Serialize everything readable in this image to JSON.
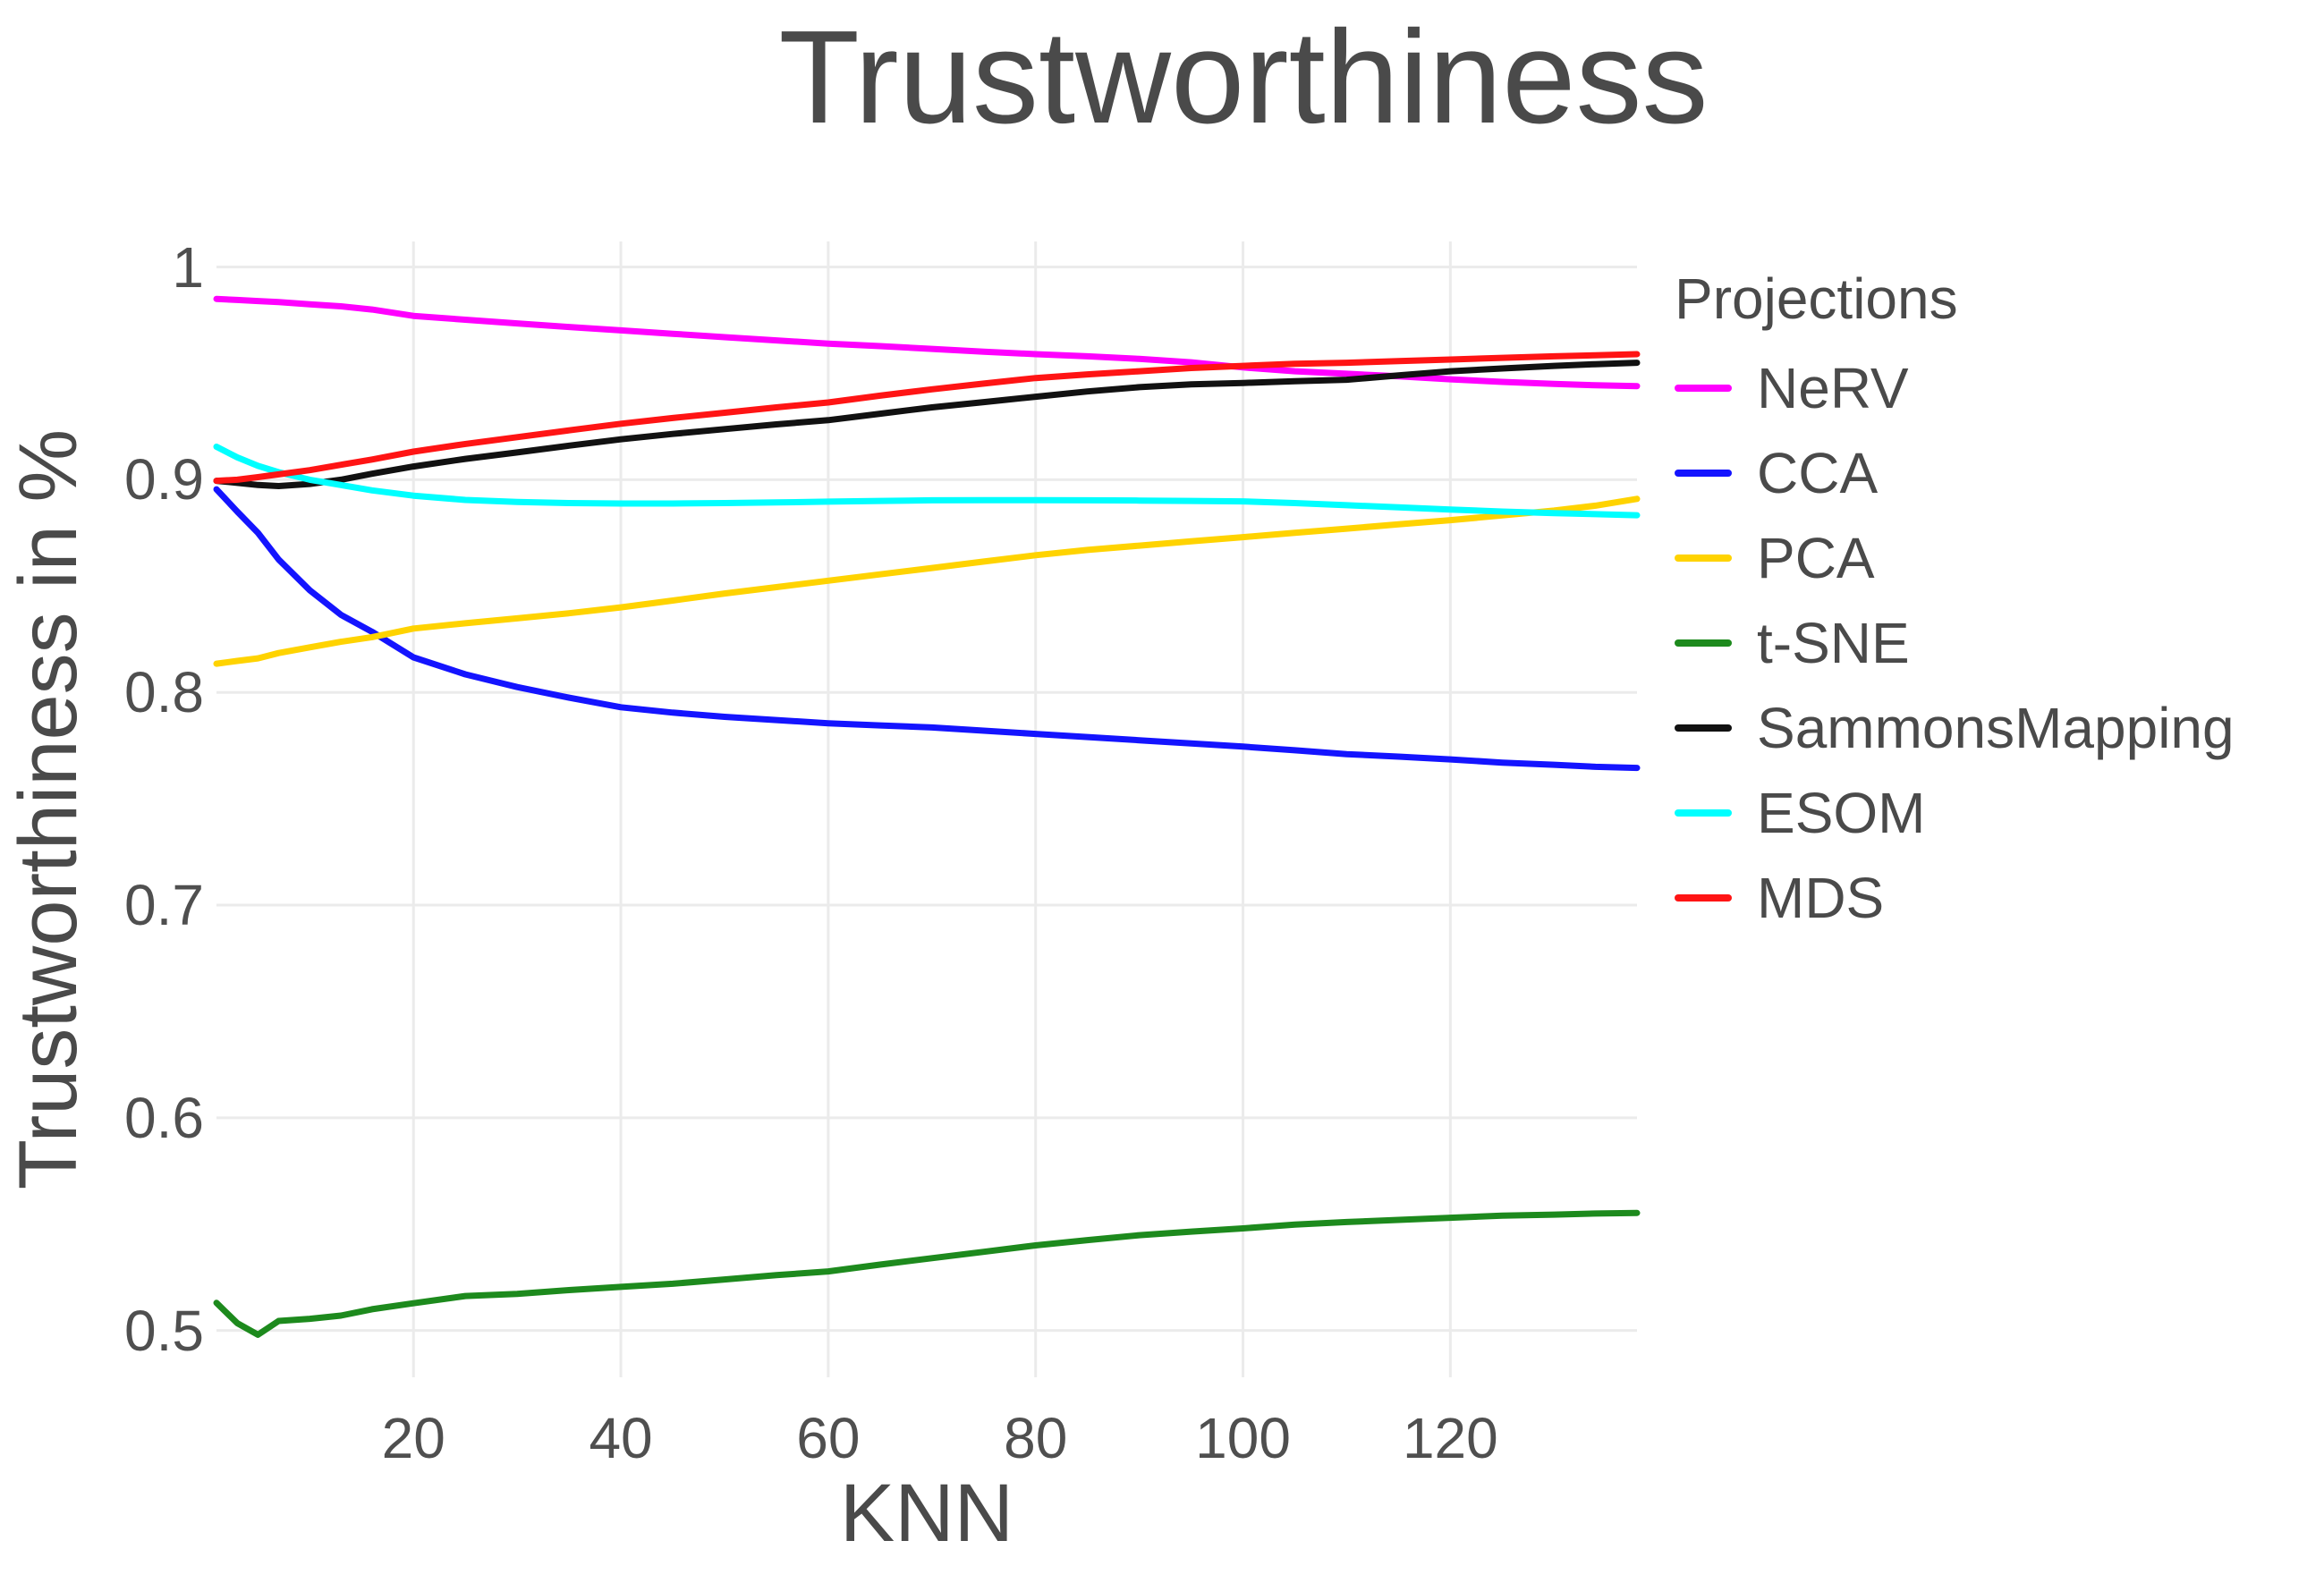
{
  "chart_data": {
    "type": "line",
    "title": "Trustworthiness",
    "xlabel": "KNN",
    "ylabel": "Trustworthiness in %",
    "legend_title": "Projections",
    "legend_position": "right",
    "grid": true,
    "xlim": [
      1,
      138
    ],
    "ylim": [
      0.478,
      1.012
    ],
    "x_ticks": [
      20,
      40,
      60,
      80,
      100,
      120
    ],
    "x_tick_labels": [
      "20",
      "40",
      "60",
      "80",
      "100",
      "120"
    ],
    "y_ticks": [
      0.5,
      0.6,
      0.7,
      0.8,
      0.9,
      1
    ],
    "y_tick_labels": [
      "0.5",
      "0.6",
      "0.7",
      "0.8",
      "0.9",
      "1"
    ],
    "x": [
      1,
      3,
      5,
      7,
      10,
      13,
      16,
      20,
      25,
      30,
      35,
      40,
      45,
      50,
      55,
      60,
      65,
      70,
      75,
      80,
      85,
      90,
      95,
      100,
      105,
      110,
      115,
      120,
      125,
      130,
      134,
      138
    ],
    "series": [
      {
        "name": "NeRV",
        "color": "#ff00ff",
        "values": [
          0.985,
          0.9845,
          0.984,
          0.9835,
          0.9825,
          0.9815,
          0.98,
          0.977,
          0.9752,
          0.9735,
          0.9718,
          0.9702,
          0.9686,
          0.967,
          0.9655,
          0.964,
          0.9628,
          0.9615,
          0.9602,
          0.959,
          0.958,
          0.9568,
          0.9552,
          0.9528,
          0.951,
          0.9498,
          0.9486,
          0.9472,
          0.946,
          0.945,
          0.9444,
          0.944
        ]
      },
      {
        "name": "CCA",
        "color": "#1414ff",
        "values": [
          0.8955,
          0.885,
          0.875,
          0.8625,
          0.848,
          0.8365,
          0.8285,
          0.8165,
          0.8085,
          0.8025,
          0.7975,
          0.793,
          0.7905,
          0.7885,
          0.787,
          0.7855,
          0.7845,
          0.7835,
          0.782,
          0.7805,
          0.779,
          0.7775,
          0.776,
          0.7745,
          0.7728,
          0.771,
          0.7698,
          0.7685,
          0.767,
          0.766,
          0.765,
          0.7645
        ]
      },
      {
        "name": "PCA",
        "color": "#ffd300",
        "values": [
          0.8135,
          0.8148,
          0.816,
          0.8185,
          0.8212,
          0.8238,
          0.826,
          0.83,
          0.8325,
          0.8348,
          0.8372,
          0.84,
          0.8432,
          0.8465,
          0.8495,
          0.8525,
          0.8555,
          0.8585,
          0.8615,
          0.8645,
          0.867,
          0.869,
          0.871,
          0.873,
          0.875,
          0.877,
          0.879,
          0.881,
          0.8832,
          0.8855,
          0.8878,
          0.891
        ]
      },
      {
        "name": "t-SNE",
        "color": "#1d8a1d",
        "values": [
          0.513,
          0.5035,
          0.498,
          0.5045,
          0.5055,
          0.507,
          0.51,
          0.5128,
          0.5162,
          0.5172,
          0.519,
          0.5205,
          0.522,
          0.524,
          0.526,
          0.5278,
          0.531,
          0.534,
          0.537,
          0.54,
          0.5425,
          0.5448,
          0.5465,
          0.548,
          0.5498,
          0.551,
          0.552,
          0.553,
          0.554,
          0.5545,
          0.555,
          0.5553
        ]
      },
      {
        "name": "SammonsMapping",
        "color": "#111111",
        "values": [
          0.8995,
          0.8985,
          0.8975,
          0.897,
          0.898,
          0.9,
          0.9028,
          0.9062,
          0.9098,
          0.9128,
          0.916,
          0.919,
          0.9215,
          0.9238,
          0.926,
          0.928,
          0.931,
          0.934,
          0.9365,
          0.939,
          0.9415,
          0.9435,
          0.9448,
          0.9455,
          0.9463,
          0.947,
          0.949,
          0.951,
          0.9523,
          0.9535,
          0.9543,
          0.955
        ]
      },
      {
        "name": "ESOM",
        "color": "#00ffff",
        "values": [
          0.9155,
          0.9105,
          0.9065,
          0.9035,
          0.9,
          0.8975,
          0.895,
          0.8925,
          0.8905,
          0.8895,
          0.889,
          0.8888,
          0.8888,
          0.889,
          0.8893,
          0.8897,
          0.89,
          0.8903,
          0.8904,
          0.8904,
          0.8903,
          0.8902,
          0.89,
          0.8898,
          0.889,
          0.888,
          0.887,
          0.886,
          0.885,
          0.8843,
          0.8838,
          0.8833
        ]
      },
      {
        "name": "MDS",
        "color": "#ff1414",
        "values": [
          0.8995,
          0.9,
          0.9012,
          0.9025,
          0.9045,
          0.907,
          0.9095,
          0.9132,
          0.9168,
          0.92,
          0.9232,
          0.9263,
          0.929,
          0.9315,
          0.934,
          0.9363,
          0.9395,
          0.9425,
          0.9452,
          0.9478,
          0.9495,
          0.951,
          0.9525,
          0.9535,
          0.9545,
          0.955,
          0.9558,
          0.9565,
          0.9573,
          0.958,
          0.9585,
          0.959
        ]
      }
    ]
  },
  "colors": {
    "background": "#ffffff",
    "grid": "#ebebeb",
    "text": "#4a4a4a"
  }
}
